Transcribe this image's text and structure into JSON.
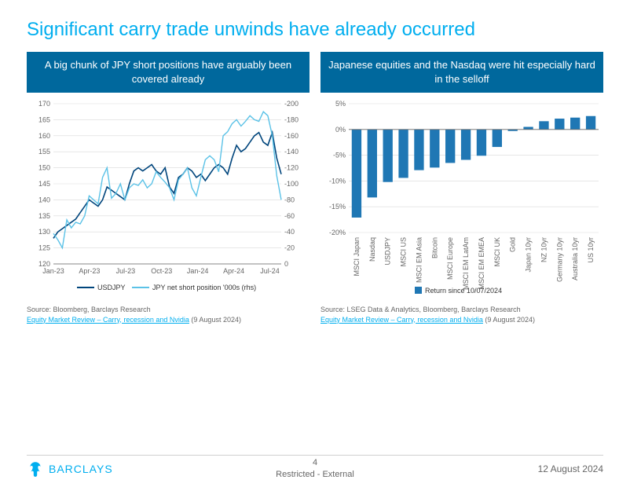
{
  "title": "Significant carry trade unwinds have already occurred",
  "panels": {
    "left": {
      "header": "A big chunk of JPY short positions have arguably been covered already",
      "chart": {
        "type": "line",
        "x_labels": [
          "Jan-23",
          "Apr-23",
          "Jul-23",
          "Oct-23",
          "Jan-24",
          "Apr-24",
          "Jul-24"
        ],
        "y_left": {
          "min": 120,
          "max": 170,
          "step": 5
        },
        "y_right": {
          "min": 0,
          "max": -200,
          "step": -20
        },
        "series": [
          {
            "name": "USDJPY",
            "color": "#00457c",
            "width": 1.6,
            "points": [
              128,
              130,
              131,
              132,
              133,
              134,
              136,
              138,
              140,
              139,
              138,
              140,
              144,
              143,
              142,
              141,
              140,
              145,
              149,
              150,
              149,
              150,
              151,
              149,
              148,
              150,
              144,
              142,
              147,
              148,
              150,
              149,
              147,
              148,
              146,
              148,
              150,
              151,
              150,
              148,
              153,
              157,
              155,
              156,
              158,
              160,
              161,
              158,
              157,
              161,
              153,
              148
            ]
          },
          {
            "name": "JPY net short position '000s (rhs)",
            "color": "#5bc2e7",
            "width": 1.4,
            "points": [
              -38,
              -30,
              -20,
              -55,
              -45,
              -52,
              -50,
              -60,
              -85,
              -80,
              -75,
              -108,
              -120,
              -82,
              -88,
              -100,
              -80,
              -95,
              -100,
              -98,
              -105,
              -95,
              -100,
              -115,
              -108,
              -102,
              -95,
              -80,
              -105,
              -112,
              -120,
              -95,
              -85,
              -108,
              -130,
              -135,
              -130,
              -115,
              -160,
              -165,
              -175,
              -180,
              -172,
              -178,
              -185,
              -180,
              -178,
              -190,
              -185,
              -160,
              -110,
              -80
            ]
          }
        ],
        "legend_position": "bottom",
        "grid_color": "#d9d9d9",
        "axis_color": "#666666",
        "tick_fontsize": 9,
        "background_color": "#ffffff"
      },
      "source": {
        "line1": "Source: Bloomberg, Barclays Research",
        "link_text": "Equity Market Review – Carry, recession and Nvidia",
        "link_suffix": " (9 August 2024)"
      }
    },
    "right": {
      "header": "Japanese equities and the Nasdaq were hit especially hard in the selloff",
      "chart": {
        "type": "bar",
        "categories": [
          "MSCI Japan",
          "Nasdaq",
          "USDJPY",
          "MSCI US",
          "MSCI EM Asia",
          "Bitcoin",
          "MSCI Europe",
          "MSCI EM LatAm",
          "MSCI EM EMEA",
          "MSCI UK",
          "Gold",
          "Japan 10yr",
          "NZ 10yr",
          "Germany 10yr",
          "Australia 10yr",
          "US 10yr"
        ],
        "values": [
          -17.1,
          -13.2,
          -10.2,
          -9.4,
          -7.9,
          -7.4,
          -6.5,
          -5.9,
          -5.1,
          -3.4,
          -0.3,
          0.5,
          1.6,
          2.1,
          2.3,
          2.6
        ],
        "bar_color": "#1f77b4",
        "y_axis": {
          "min": -20,
          "max": 5,
          "step": 5,
          "format": "percent"
        },
        "legend_label": "Return since 10/07/2024",
        "legend_position": "bottom",
        "grid_color": "#d9d9d9",
        "axis_color": "#666666",
        "tick_fontsize": 9,
        "bar_width": 0.62,
        "background_color": "#ffffff"
      },
      "source": {
        "line1": "Source:  LSEG Data & Analytics, Bloomberg, Barclays Research",
        "link_text": "Equity Market Review – Carry, recession and Nvidia",
        "link_suffix": " (9 August 2024)"
      }
    }
  },
  "footer": {
    "page_number": "4",
    "restricted": "Restricted - External",
    "date": "12 August 2024",
    "logo_text": "BARCLAYS",
    "logo_color": "#00aeef"
  }
}
